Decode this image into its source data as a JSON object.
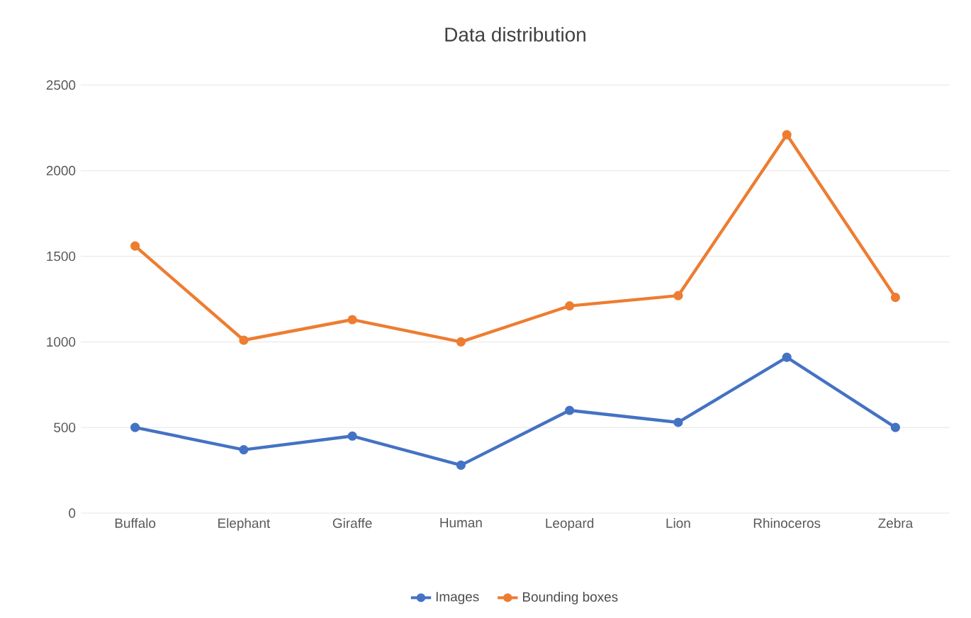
{
  "chart_data": {
    "type": "line",
    "title": "Data distribution",
    "categories": [
      "Buffalo",
      "Elephant",
      "Giraffe",
      "Human",
      "Leopard",
      "Lion",
      "Rhinoceros",
      "Zebra"
    ],
    "series": [
      {
        "name": "Images",
        "color": "#4472c4",
        "values": [
          500,
          370,
          450,
          280,
          600,
          530,
          910,
          500
        ]
      },
      {
        "name": "Bounding boxes",
        "color": "#ed7d31",
        "values": [
          1560,
          1010,
          1130,
          1000,
          1210,
          1270,
          2210,
          1260
        ]
      }
    ],
    "ylim": [
      0,
      2500
    ],
    "yticks": [
      0,
      500,
      1000,
      1500,
      2000,
      2500
    ],
    "grid": "y",
    "legend": "bottom",
    "marker": "circle",
    "line_style": "solid"
  }
}
